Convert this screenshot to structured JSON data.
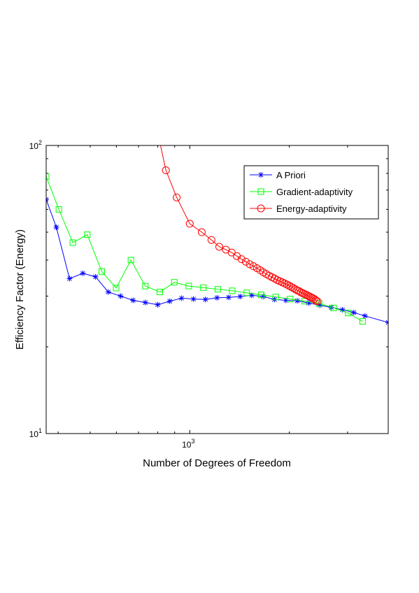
{
  "chart_data": {
    "type": "line",
    "xlabel": "Number of Degrees of Freedom",
    "ylabel": "Efficiency Factor (Energy)",
    "xscale": "log",
    "yscale": "log",
    "xlim": [
      368,
      3981
    ],
    "ylim": [
      10,
      100
    ],
    "yticks": [
      {
        "value": 100,
        "base": "10",
        "exp": "2"
      },
      {
        "value": 10,
        "base": "10",
        "exp": "1"
      }
    ],
    "xticks": [
      {
        "value": 1000,
        "base": "10",
        "exp": "3"
      }
    ],
    "grid": false,
    "legend_position": "top-right",
    "series": [
      {
        "name": "A Priori",
        "color": "#0000ff",
        "marker": "asterisk",
        "x": [
          368,
          395,
          433,
          475,
          519,
          567,
          618,
          674,
          734,
          800,
          870,
          945,
          1026,
          1115,
          1209,
          1311,
          1420,
          1539,
          1667,
          1804,
          1953,
          2114,
          2288,
          2475,
          2677,
          2896,
          3132,
          3386,
          3981
        ],
        "y": [
          65,
          52,
          34.5,
          36,
          35,
          31,
          30,
          29,
          28.5,
          28,
          28.8,
          29.5,
          29.3,
          29.2,
          29.6,
          29.7,
          29.9,
          30.2,
          29.9,
          29.2,
          29.0,
          28.9,
          28.4,
          27.9,
          27.4,
          26.9,
          26.3,
          25.6,
          24.3
        ]
      },
      {
        "name": "Gradient-adaptivity",
        "color": "#00ff00",
        "marker": "square",
        "x": [
          368,
          402,
          443,
          490,
          542,
          599,
          664,
          734,
          812,
          898,
          993,
          1099,
          1215,
          1344,
          1487,
          1644,
          1819,
          2012,
          2225,
          2461,
          2722,
          3011,
          3331
        ],
        "y": [
          78,
          60,
          46,
          49,
          36.5,
          32,
          40,
          32.5,
          31,
          33.5,
          32.5,
          32.1,
          31.7,
          31.3,
          30.8,
          30.3,
          29.8,
          29.3,
          28.8,
          28.3,
          27.3,
          26.2,
          24.5
        ]
      },
      {
        "name": "Energy-adaptivity",
        "color": "#ff0000",
        "marker": "circle",
        "x": [
          847,
          913,
          1000,
          1087,
          1163,
          1228,
          1286,
          1339,
          1388,
          1434,
          1477,
          1518,
          1557,
          1596,
          1633,
          1668,
          1703,
          1738,
          1772,
          1805,
          1839,
          1871,
          1903,
          1934,
          1966,
          1997,
          2026,
          2055,
          2084,
          2112,
          2141,
          2168,
          2196,
          2223,
          2250,
          2277,
          2303,
          2328,
          2354,
          2380,
          2406,
          2431
        ],
        "y": [
          82,
          66,
          53.5,
          50,
          47,
          44.5,
          43.5,
          42.5,
          41.3,
          40.3,
          39.5,
          38.7,
          38.1,
          37.5,
          36.9,
          36.3,
          35.8,
          35.3,
          34.9,
          34.5,
          34.1,
          33.8,
          33.5,
          33.2,
          32.9,
          32.6,
          32.3,
          32.0,
          31.7,
          31.4,
          31.2,
          30.9,
          30.7,
          30.5,
          30.3,
          30.1,
          29.9,
          29.7,
          29.5,
          29.3,
          29.0,
          28.8
        ]
      }
    ]
  }
}
